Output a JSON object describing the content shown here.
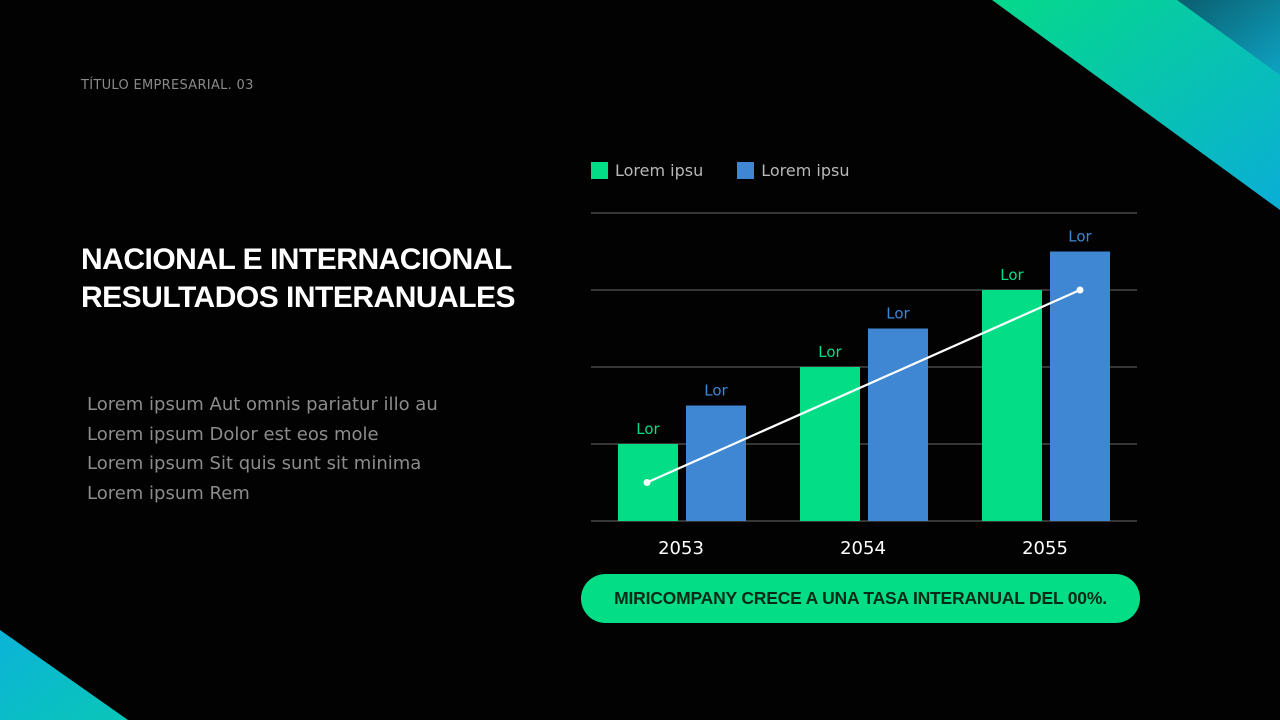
{
  "header": {
    "subtitle": "TÍTULO EMPRESARIAL. 03"
  },
  "main": {
    "title_line1": "NACIONAL E INTERNACIONAL",
    "title_line2": "RESULTADOS INTERANUALES",
    "body_lines": [
      "Lorem ipsum Aut omnis pariatur illo au",
      "Lorem ipsum Dolor est eos mole",
      "Lorem ipsum Sit quis sunt sit minima",
      "Lorem ipsum Rem"
    ]
  },
  "legend": {
    "items": [
      {
        "label": "Lorem ipsu",
        "color": "#03dd86"
      },
      {
        "label": "Lorem ipsu",
        "color": "#3f87d2"
      }
    ]
  },
  "callout": {
    "text": "MIRICOMPANY CRECE A UNA TASA INTERANUAL DEL 00%."
  },
  "colors": {
    "green": "#03dd86",
    "blue": "#3f87d2",
    "background": "#020203",
    "gridline": "#555555",
    "trendline": "#ffffff"
  },
  "chart_data": {
    "type": "bar",
    "title": "",
    "xlabel": "",
    "ylabel": "",
    "categories": [
      "2053",
      "2054",
      "2055"
    ],
    "series": [
      {
        "name": "Lorem ipsu",
        "color": "#03dd86",
        "values": [
          1,
          2,
          3
        ],
        "data_labels": [
          "Lor",
          "Lor",
          "Lor"
        ]
      },
      {
        "name": "Lorem ipsu",
        "color": "#3f87d2",
        "values": [
          1.5,
          2.5,
          3.5
        ],
        "data_labels": [
          "Lor",
          "Lor",
          "Lor"
        ]
      }
    ],
    "trendline": {
      "type": "line",
      "color": "#ffffff",
      "points": [
        {
          "x": "2053",
          "y": 0.5
        },
        {
          "x": "2055",
          "y": 3
        }
      ]
    },
    "ylim": [
      0,
      4
    ],
    "y_gridlines": [
      0,
      1,
      2,
      3,
      4
    ],
    "grid": true,
    "y_tick_labels_shown": false,
    "legend_position": "top-left"
  }
}
